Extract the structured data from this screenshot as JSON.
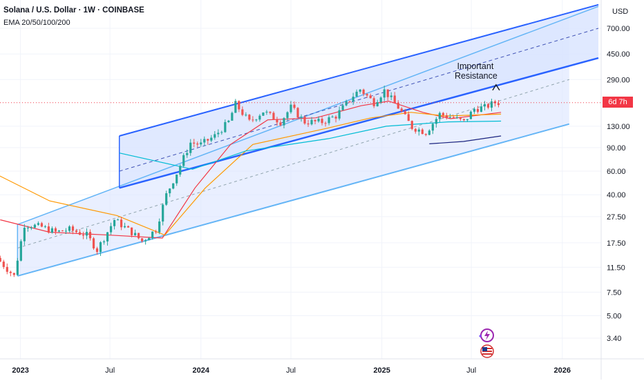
{
  "header": {
    "title": "Solana / U.S. Dollar · 1W · COINBASE",
    "indicator": "EMA 20/50/100/200"
  },
  "price_scale": {
    "currency": "USD",
    "countdown": "6d 7h"
  },
  "colors": {
    "up": "#26a69a",
    "down": "#ef5350",
    "channel_dark": "#2962ff",
    "channel_light": "#64b5f6",
    "channel_fill": "#dbe5ff",
    "ema20": "#f23645",
    "ema50": "#ff9800",
    "ema100": "#00bcd4",
    "ema200": "#1a237e"
  },
  "chart_data": {
    "type": "candlestick",
    "y_scale": "log",
    "ylim": [
      2.9,
      1050
    ],
    "y_ticks": [
      "700.00",
      "450.00",
      "290.00",
      "130.00",
      "90.00",
      "60.00",
      "40.00",
      "27.50",
      "17.50",
      "11.50",
      "7.50",
      "5.00",
      "3.40"
    ],
    "x_ticks": [
      {
        "label": "2023",
        "bold": true,
        "date": "2023-01-01"
      },
      {
        "label": "Jul",
        "bold": false,
        "date": "2023-07-01"
      },
      {
        "label": "2024",
        "bold": true,
        "date": "2024-01-01"
      },
      {
        "label": "Jul",
        "bold": false,
        "date": "2024-07-01"
      },
      {
        "label": "2025",
        "bold": true,
        "date": "2025-01-01"
      },
      {
        "label": "Jul",
        "bold": false,
        "date": "2025-07-01"
      },
      {
        "label": "2026",
        "bold": true,
        "date": "2026-01-01"
      }
    ],
    "x_range": [
      "2022-11-15",
      "2026-03-15"
    ],
    "last_price": 195,
    "price_path": [
      {
        "date": "2022-11-21",
        "price": 13.5
      },
      {
        "date": "2022-12-26",
        "price": 9.9
      },
      {
        "date": "2023-01-16",
        "price": 24
      },
      {
        "date": "2023-02-20",
        "price": 23
      },
      {
        "date": "2023-03-20",
        "price": 21
      },
      {
        "date": "2023-04-17",
        "price": 22
      },
      {
        "date": "2023-05-22",
        "price": 20
      },
      {
        "date": "2023-06-12",
        "price": 15.5
      },
      {
        "date": "2023-07-17",
        "price": 26
      },
      {
        "date": "2023-08-21",
        "price": 21
      },
      {
        "date": "2023-09-11",
        "price": 18
      },
      {
        "date": "2023-10-09",
        "price": 22
      },
      {
        "date": "2023-10-30",
        "price": 40
      },
      {
        "date": "2023-11-20",
        "price": 58
      },
      {
        "date": "2023-12-18",
        "price": 98
      },
      {
        "date": "2024-01-08",
        "price": 95
      },
      {
        "date": "2024-02-05",
        "price": 110
      },
      {
        "date": "2024-03-04",
        "price": 140
      },
      {
        "date": "2024-03-18",
        "price": 190
      },
      {
        "date": "2024-04-15",
        "price": 140
      },
      {
        "date": "2024-05-13",
        "price": 168
      },
      {
        "date": "2024-06-17",
        "price": 140
      },
      {
        "date": "2024-07-08",
        "price": 180
      },
      {
        "date": "2024-08-05",
        "price": 140
      },
      {
        "date": "2024-09-09",
        "price": 140
      },
      {
        "date": "2024-10-07",
        "price": 155
      },
      {
        "date": "2024-11-11",
        "price": 220
      },
      {
        "date": "2024-11-25",
        "price": 245
      },
      {
        "date": "2024-12-23",
        "price": 195
      },
      {
        "date": "2025-01-13",
        "price": 240
      },
      {
        "date": "2025-02-10",
        "price": 180
      },
      {
        "date": "2025-03-10",
        "price": 128
      },
      {
        "date": "2025-04-07",
        "price": 117
      },
      {
        "date": "2025-05-05",
        "price": 160
      },
      {
        "date": "2025-06-02",
        "price": 150
      },
      {
        "date": "2025-06-23",
        "price": 140
      },
      {
        "date": "2025-07-14",
        "price": 175
      },
      {
        "date": "2025-08-04",
        "price": 180
      },
      {
        "date": "2025-08-25",
        "price": 195
      }
    ],
    "ema_lines": [
      {
        "period": 20,
        "points": [
          {
            "date": "2022-11-21",
            "price": 26
          },
          {
            "date": "2023-03-01",
            "price": 21
          },
          {
            "date": "2023-07-01",
            "price": 20
          },
          {
            "date": "2023-10-15",
            "price": 19
          },
          {
            "date": "2023-12-20",
            "price": 45
          },
          {
            "date": "2024-03-01",
            "price": 95
          },
          {
            "date": "2024-05-15",
            "price": 145
          },
          {
            "date": "2024-08-20",
            "price": 150
          },
          {
            "date": "2024-11-20",
            "price": 185
          },
          {
            "date": "2025-01-15",
            "price": 200
          },
          {
            "date": "2025-03-25",
            "price": 165
          },
          {
            "date": "2025-05-20",
            "price": 148
          },
          {
            "date": "2025-08-30",
            "price": 165
          }
        ]
      },
      {
        "period": 50,
        "points": [
          {
            "date": "2022-11-01",
            "price": 60
          },
          {
            "date": "2023-03-01",
            "price": 36
          },
          {
            "date": "2023-07-15",
            "price": 28
          },
          {
            "date": "2023-10-20",
            "price": 20
          },
          {
            "date": "2024-01-10",
            "price": 45
          },
          {
            "date": "2024-04-15",
            "price": 95
          },
          {
            "date": "2024-09-10",
            "price": 125
          },
          {
            "date": "2024-12-10",
            "price": 150
          },
          {
            "date": "2025-03-01",
            "price": 165
          },
          {
            "date": "2025-05-10",
            "price": 155
          },
          {
            "date": "2025-08-30",
            "price": 160
          }
        ]
      },
      {
        "period": 100,
        "points": [
          {
            "date": "2023-07-20",
            "price": 82
          },
          {
            "date": "2023-12-15",
            "price": 62
          },
          {
            "date": "2024-04-01",
            "price": 85
          },
          {
            "date": "2024-09-15",
            "price": 105
          },
          {
            "date": "2025-01-10",
            "price": 130
          },
          {
            "date": "2025-05-15",
            "price": 140
          },
          {
            "date": "2025-08-30",
            "price": 142
          }
        ]
      },
      {
        "period": 200,
        "points": [
          {
            "date": "2025-04-07",
            "price": 96
          },
          {
            "date": "2025-06-15",
            "price": 100
          },
          {
            "date": "2025-08-30",
            "price": 110
          }
        ]
      }
    ],
    "channel": {
      "lower": [
        {
          "date": "2022-12-26",
          "price": 9.9
        },
        {
          "date": "2026-01-15",
          "price": 135
        }
      ],
      "upper": [
        {
          "date": "2022-12-26",
          "price": 24
        },
        {
          "date": "2026-03-15",
          "price": 1020
        }
      ],
      "resistance": [
        {
          "date": "2023-07-20",
          "price": 45
        },
        {
          "date": "2026-03-15",
          "price": 420
        }
      ],
      "upper_mid": [
        {
          "date": "2023-07-20",
          "price": 60
        },
        {
          "date": "2026-03-15",
          "price": 700
        }
      ],
      "lower_mid": [
        {
          "date": "2022-12-26",
          "price": 16
        },
        {
          "date": "2026-01-15",
          "price": 290
        }
      ],
      "inner_top": [
        {
          "date": "2023-07-20",
          "price": 110
        },
        {
          "date": "2026-03-15",
          "price": 1050
        }
      ]
    },
    "annotation": {
      "text_line1": "Important",
      "text_line2": "Resistance",
      "date": "2025-08-20",
      "price": 250
    }
  }
}
